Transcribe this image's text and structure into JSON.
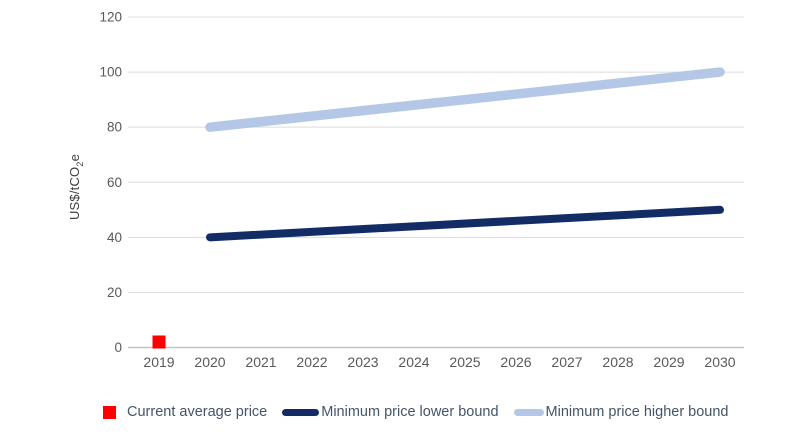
{
  "chart_data": {
    "type": "line",
    "title": "",
    "ylabel": "US$/tCO2e",
    "ylabel_parts": {
      "prefix": "US$/tCO",
      "sub": "2",
      "suffix": "e"
    },
    "xlabel": "",
    "x_categories": [
      "2019",
      "2020",
      "2021",
      "2022",
      "2023",
      "2024",
      "2025",
      "2026",
      "2027",
      "2028",
      "2029",
      "2030"
    ],
    "y_ticks": [
      0,
      20,
      40,
      60,
      80,
      100,
      120
    ],
    "ylim": [
      0,
      120
    ],
    "grid": "horizontal",
    "legend_position": "bottom",
    "series": [
      {
        "name": "Current average price",
        "type": "scatter-square",
        "color": "#fe0000",
        "points": [
          {
            "x": "2019",
            "y": 2
          }
        ]
      },
      {
        "name": "Minimum price lower bound",
        "type": "line",
        "color": "#132c66",
        "points": [
          {
            "x": "2020",
            "y": 40
          },
          {
            "x": "2030",
            "y": 50
          }
        ]
      },
      {
        "name": "Minimum price higher bound",
        "type": "line",
        "color": "#b4c7e7",
        "points": [
          {
            "x": "2020",
            "y": 80
          },
          {
            "x": "2030",
            "y": 100
          }
        ]
      }
    ],
    "style": {
      "gridline_color": "#dcdcdc",
      "axis_line_color": "#c3c3c3",
      "tick_label_color": "#595959",
      "legend_text_color": "#44546a",
      "background_color": "#ffffff"
    }
  }
}
